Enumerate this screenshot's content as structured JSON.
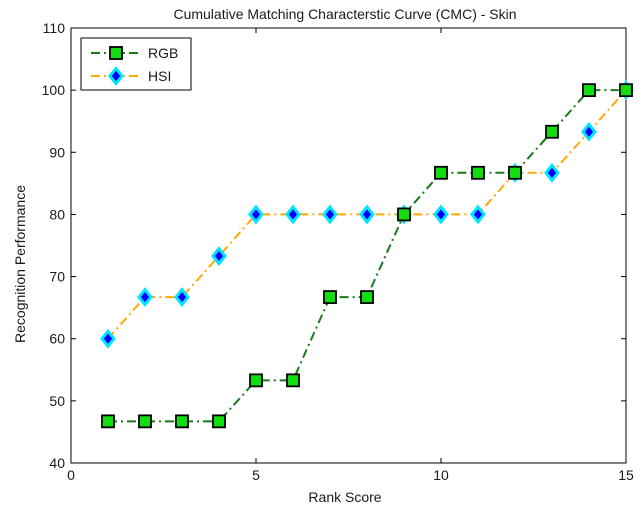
{
  "chart_data": {
    "type": "line",
    "title": "Cumulative Matching Characterstic Curve (CMC) - Skin",
    "xlabel": "Rank Score",
    "ylabel": "Recognition Performance",
    "xlim": [
      0,
      15
    ],
    "ylim": [
      40,
      110
    ],
    "xticks": [
      0,
      5,
      10,
      15
    ],
    "yticks": [
      40,
      50,
      60,
      70,
      80,
      90,
      100,
      110
    ],
    "grid": false,
    "legend_position": "top-left",
    "x": [
      1,
      2,
      3,
      4,
      5,
      6,
      7,
      8,
      9,
      10,
      11,
      12,
      13,
      14,
      15
    ],
    "series": [
      {
        "name": "RGB",
        "values": [
          46.7,
          46.7,
          46.7,
          46.7,
          53.3,
          53.3,
          66.7,
          66.7,
          80,
          86.7,
          86.7,
          86.7,
          93.3,
          100,
          100
        ],
        "line_color": "#1a7a1a",
        "marker": "square",
        "marker_fill": "#11dd11",
        "marker_edge": "#000000"
      },
      {
        "name": "HSI",
        "values": [
          60,
          66.7,
          66.7,
          73.3,
          80,
          80,
          80,
          80,
          80,
          80,
          80,
          86.7,
          86.7,
          93.3,
          100
        ],
        "line_color": "#ffaa00",
        "marker": "diamond",
        "marker_fill": "#0000ff",
        "marker_edge": "#00e5ff"
      }
    ]
  }
}
